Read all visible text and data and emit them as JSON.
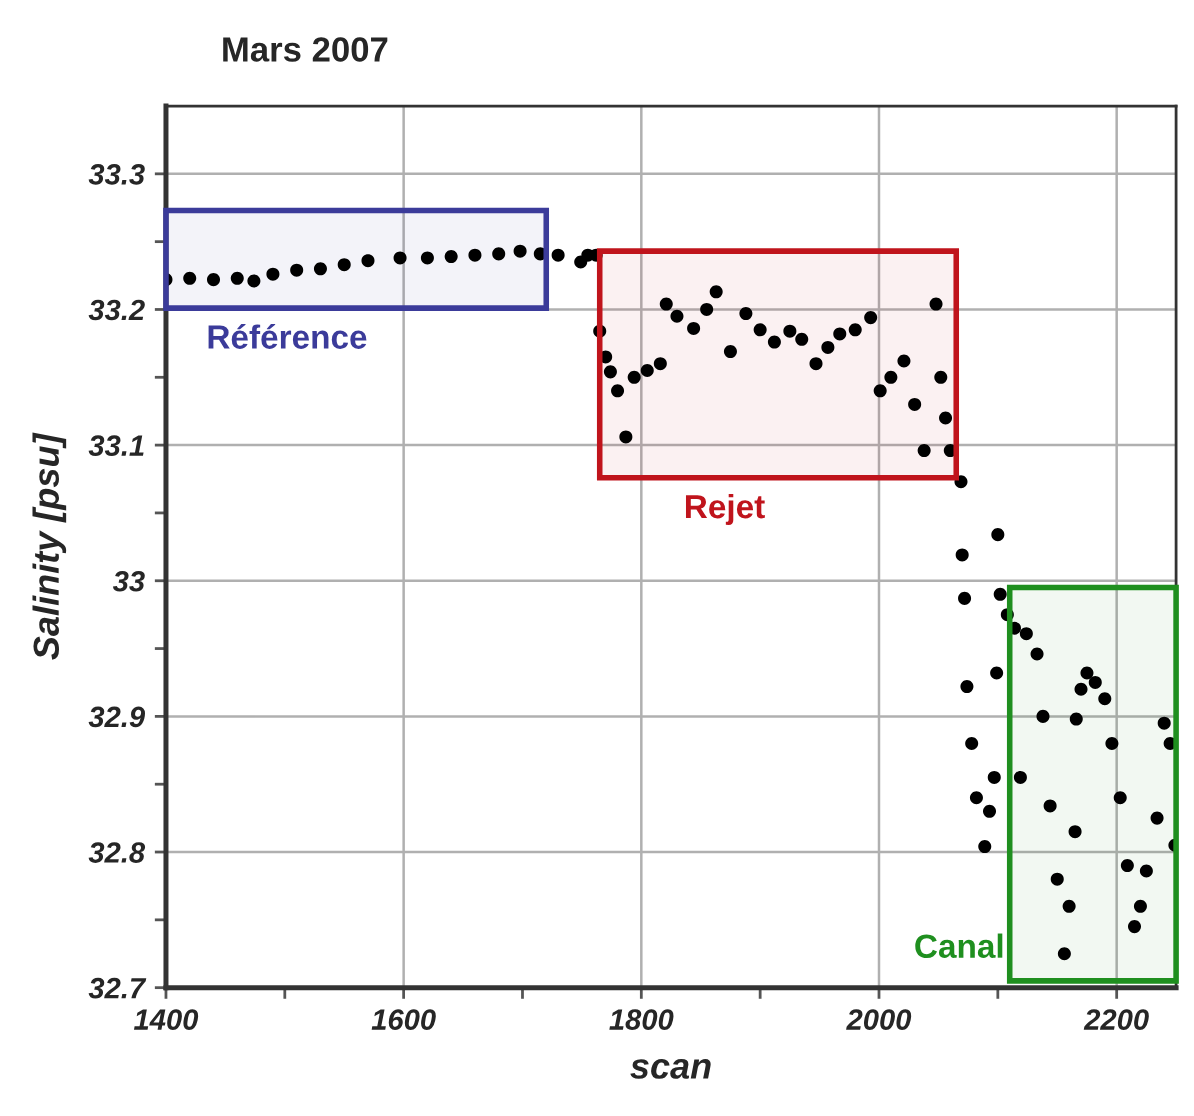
{
  "chart_data": {
    "type": "scatter",
    "title": "Mars 2007",
    "xlabel": "scan",
    "ylabel": "Salinity [psu]",
    "x": [
      1400,
      1420,
      1440,
      1460,
      1474,
      1490,
      1510,
      1530,
      1550,
      1570,
      1597,
      1620,
      1640,
      1660,
      1680,
      1698,
      1715,
      1730,
      1749,
      1755,
      1762,
      1765,
      1770,
      1774,
      1780,
      1787,
      1794,
      1805,
      1816,
      1821,
      1830,
      1844,
      1855,
      1863,
      1875,
      1888,
      1900,
      1912,
      1925,
      1935,
      1947,
      1957,
      1967,
      1980,
      1993,
      2001,
      2010,
      2021,
      2030,
      2038,
      2048,
      2052,
      2056,
      2060,
      2069,
      2070,
      2072,
      2074,
      2078,
      2082,
      2089,
      2093,
      2097,
      2099,
      2100,
      2102,
      2108,
      2114,
      2119,
      2124,
      2133,
      2138,
      2144,
      2150,
      2156,
      2160,
      2165,
      2166,
      2170,
      2175,
      2182,
      2190,
      2196,
      2203,
      2209,
      2215,
      2220,
      2225,
      2234,
      2240,
      2245,
      2249
    ],
    "values": [
      33.222,
      33.223,
      33.222,
      33.223,
      33.221,
      33.226,
      33.229,
      33.23,
      33.233,
      33.236,
      33.238,
      33.238,
      33.239,
      33.24,
      33.241,
      33.243,
      33.241,
      33.24,
      33.235,
      33.24,
      33.24,
      33.184,
      33.165,
      33.154,
      33.14,
      33.106,
      33.15,
      33.155,
      33.16,
      33.204,
      33.195,
      33.186,
      33.2,
      33.213,
      33.169,
      33.197,
      33.185,
      33.176,
      33.184,
      33.178,
      33.16,
      33.172,
      33.182,
      33.185,
      33.194,
      33.14,
      33.15,
      33.162,
      33.13,
      33.096,
      33.204,
      33.15,
      33.12,
      33.096,
      33.073,
      33.019,
      32.987,
      32.922,
      32.88,
      32.84,
      32.804,
      32.83,
      32.855,
      32.932,
      33.034,
      32.99,
      32.975,
      32.965,
      32.855,
      32.961,
      32.946,
      32.9,
      32.834,
      32.78,
      32.725,
      32.76,
      32.815,
      32.898,
      32.92,
      32.932,
      32.925,
      32.913,
      32.88,
      32.84,
      32.79,
      32.745,
      32.76,
      32.786,
      32.825,
      32.895,
      32.88,
      32.805
    ],
    "color": "#000000",
    "marker": "circle",
    "xlim": [
      1400,
      2250
    ],
    "ylim": [
      32.7,
      33.35
    ],
    "xticks": [
      1400,
      {
        "value": 1500,
        "label": null
      },
      1600,
      {
        "value": 1700,
        "label": null
      },
      1800,
      {
        "value": 1900,
        "label": null
      },
      2000,
      {
        "value": 2100,
        "label": null
      },
      2200
    ],
    "yticks": [
      {
        "value": 32.7,
        "label": "32.7"
      },
      {
        "value": 32.75,
        "label": null
      },
      {
        "value": 32.8,
        "label": "32.8"
      },
      {
        "value": 32.85,
        "label": null
      },
      {
        "value": 32.9,
        "label": "32.9"
      },
      {
        "value": 32.95,
        "label": null
      },
      {
        "value": 33,
        "label": "33"
      },
      {
        "value": 33.05,
        "label": null
      },
      {
        "value": 33.1,
        "label": "33.1"
      },
      {
        "value": 33.15,
        "label": null
      },
      {
        "value": 33.2,
        "label": "33.2"
      },
      {
        "value": 33.25,
        "label": null
      },
      {
        "value": 33.3,
        "label": "33.3"
      }
    ],
    "grid": true,
    "bands": [
      {
        "axis": "x",
        "from": 1400,
        "to": 1720,
        "label": "Référence",
        "color": "#3b3b9a"
      },
      {
        "axis": "x",
        "from": 1765,
        "to": 2065,
        "label": "Rejet",
        "color": "#c0141c"
      },
      {
        "axis": "x",
        "from": 2110,
        "to": 2250,
        "label": "Canal",
        "color": "#1f8f1f"
      }
    ]
  }
}
